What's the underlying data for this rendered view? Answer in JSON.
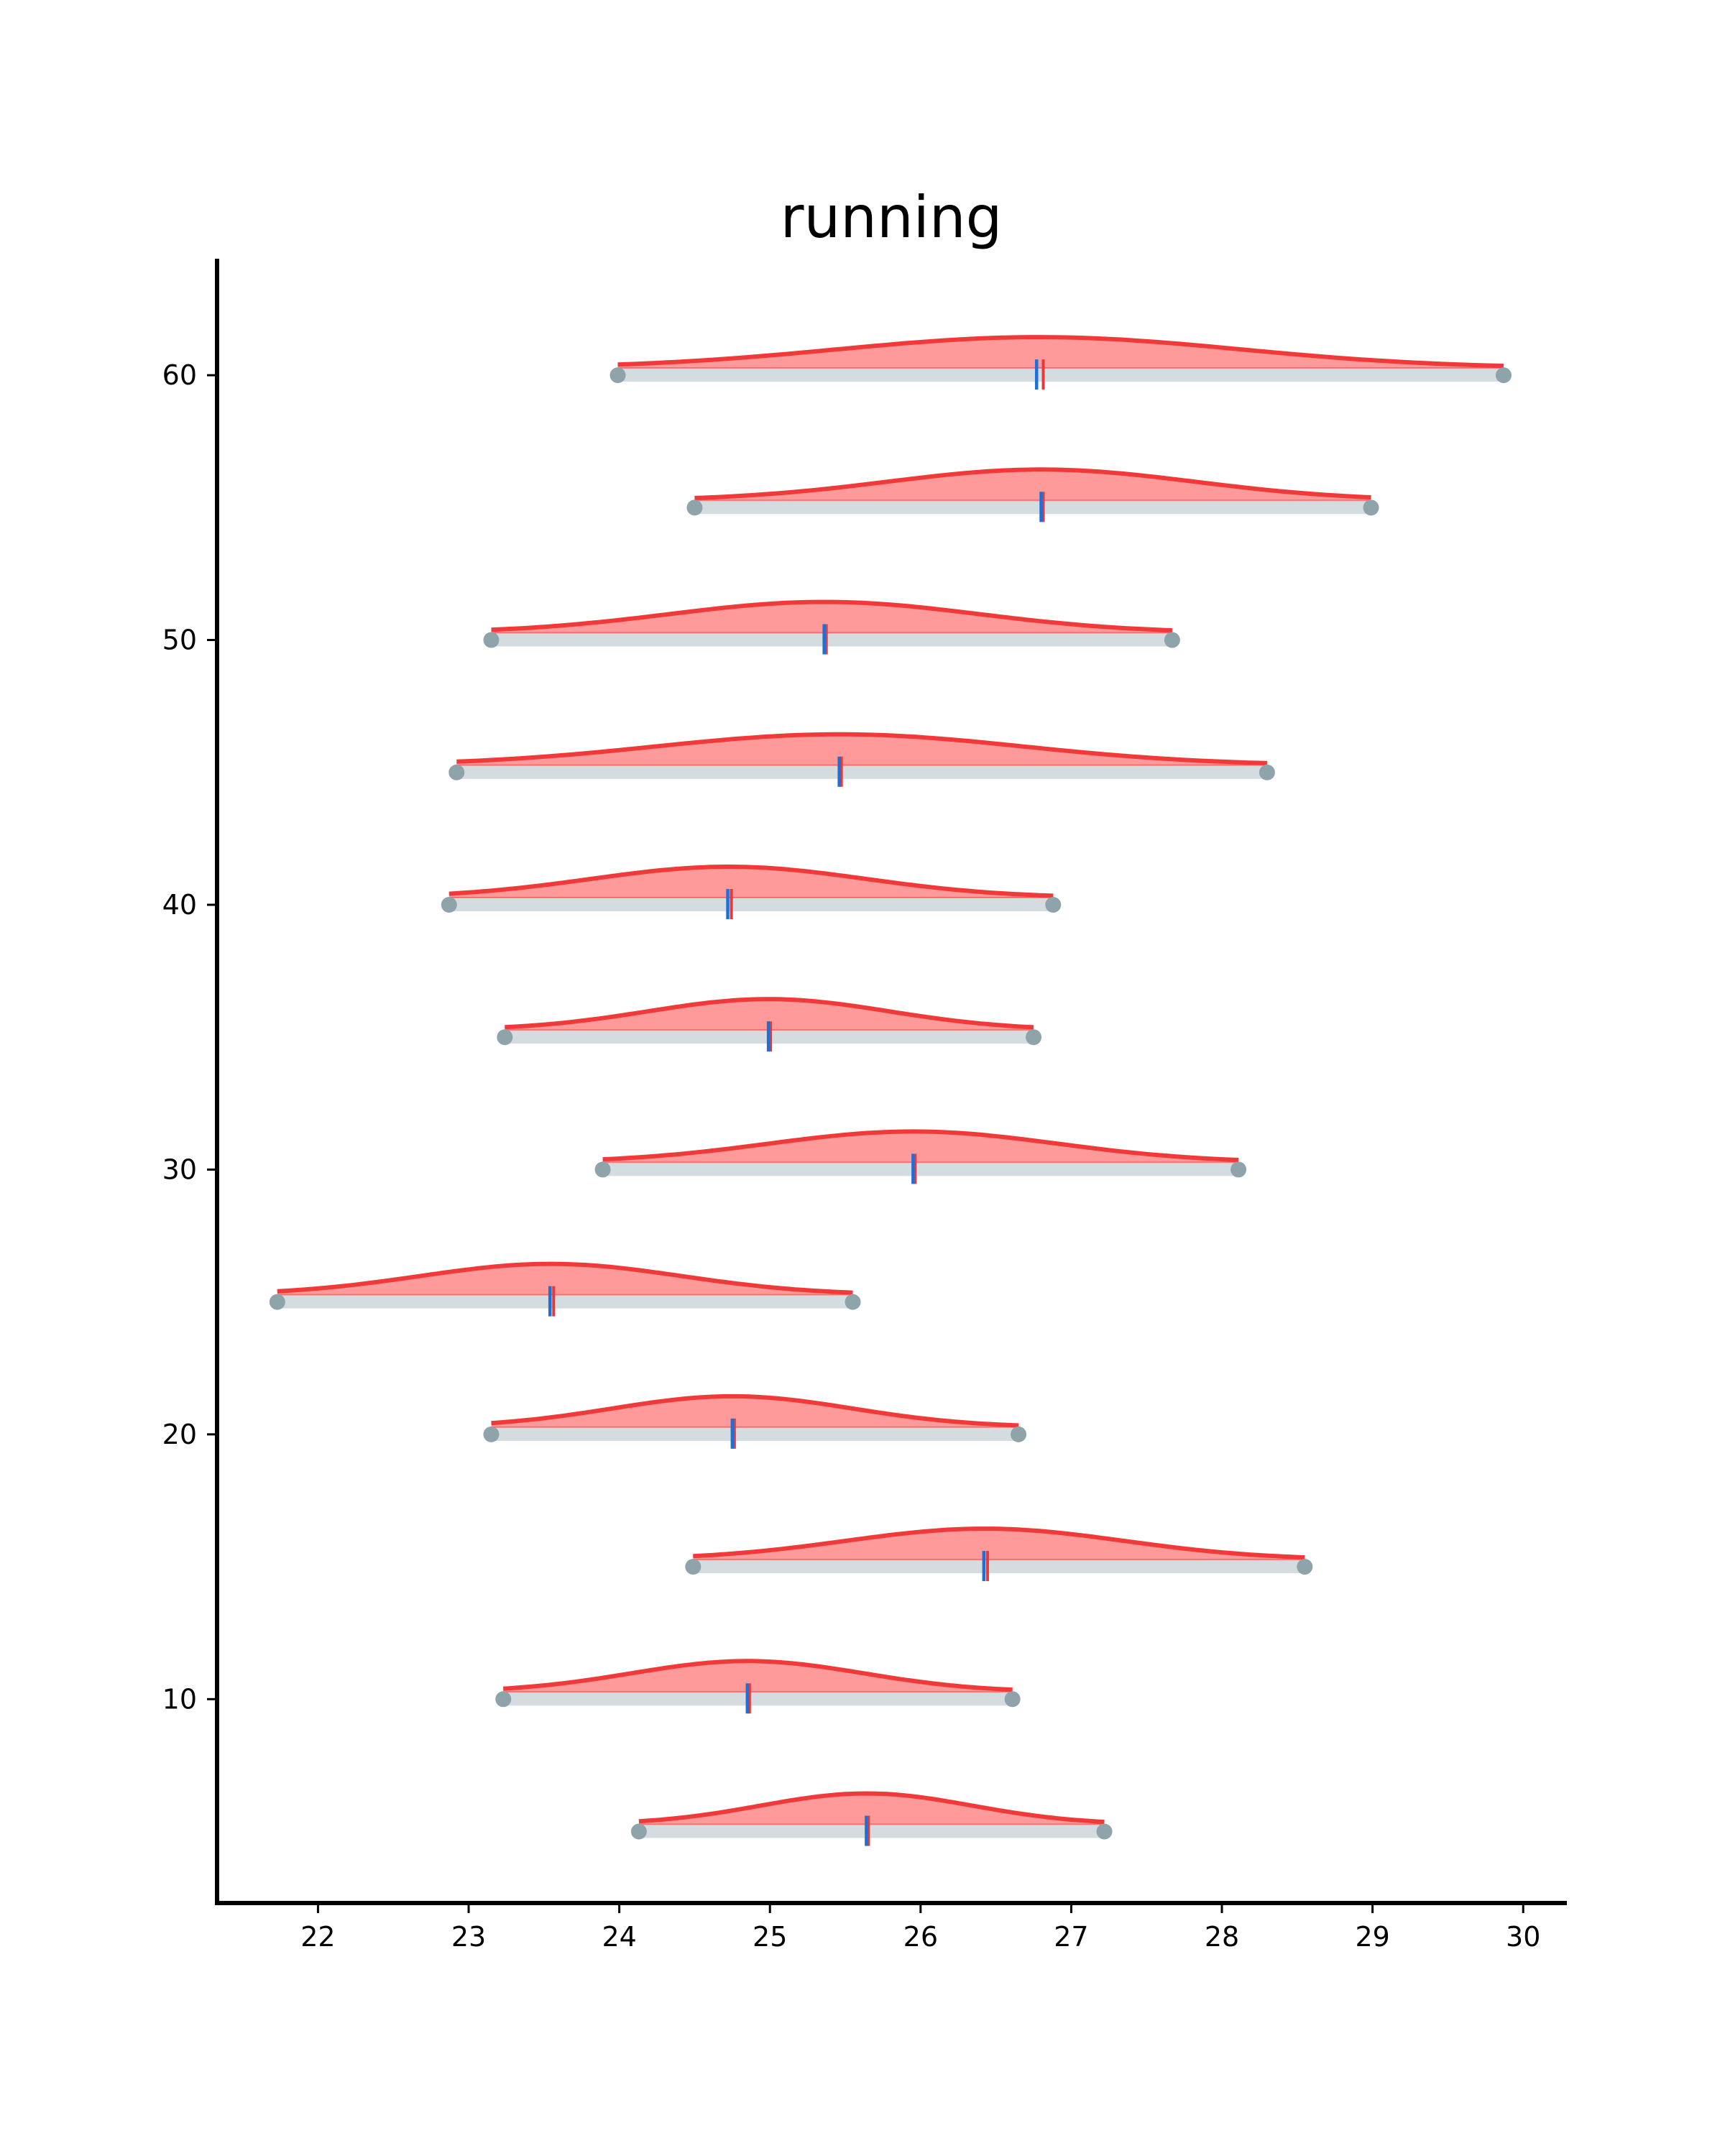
{
  "chart_data": {
    "type": "ridgeline",
    "title": "running",
    "xlabel": "",
    "ylabel": "",
    "xlim": [
      21.33,
      30.29
    ],
    "ylim": [
      2.3,
      64.4
    ],
    "x_ticks": [
      22,
      23,
      24,
      25,
      26,
      27,
      28,
      29,
      30
    ],
    "y_ticks": [
      10,
      20,
      30,
      40,
      50,
      60
    ],
    "grid": false,
    "colors": {
      "density_line": "#f03a3a",
      "density_fill": "#ff9a9a",
      "range_bar": "#d5dcdf",
      "endpoint": "#8fa3ab",
      "mean_marker": "#1f6fd6",
      "median_marker": "#e23b3b",
      "axis": "#000000"
    },
    "rows": [
      {
        "y": 5,
        "min": 24.13,
        "max": 27.22,
        "mean": 25.64,
        "median": 25.64
      },
      {
        "y": 10,
        "min": 23.23,
        "max": 26.61,
        "mean": 24.85,
        "median": 24.85
      },
      {
        "y": 15,
        "min": 24.49,
        "max": 28.55,
        "mean": 26.42,
        "median": 26.43
      },
      {
        "y": 20,
        "min": 23.15,
        "max": 26.65,
        "mean": 24.75,
        "median": 24.75
      },
      {
        "y": 25,
        "min": 21.73,
        "max": 25.55,
        "mean": 23.54,
        "median": 23.55
      },
      {
        "y": 30,
        "min": 23.89,
        "max": 28.11,
        "mean": 25.95,
        "median": 25.95
      },
      {
        "y": 35,
        "min": 23.24,
        "max": 26.75,
        "mean": 24.99,
        "median": 24.99
      },
      {
        "y": 40,
        "min": 22.87,
        "max": 26.88,
        "mean": 24.72,
        "median": 24.73
      },
      {
        "y": 45,
        "min": 22.92,
        "max": 28.3,
        "mean": 25.46,
        "median": 25.46
      },
      {
        "y": 50,
        "min": 23.15,
        "max": 27.67,
        "mean": 25.36,
        "median": 25.36
      },
      {
        "y": 55,
        "min": 24.5,
        "max": 28.99,
        "mean": 26.8,
        "median": 26.8
      },
      {
        "y": 60,
        "min": 23.99,
        "max": 29.87,
        "mean": 26.77,
        "median": 26.8
      }
    ]
  }
}
